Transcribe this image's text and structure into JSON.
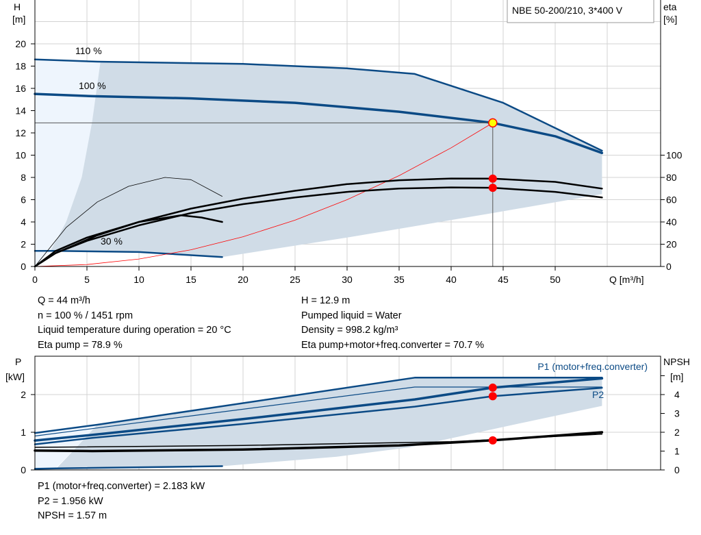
{
  "chart_data": [
    {
      "type": "line",
      "title": "NBE 50-200/210, 3*400 V",
      "xlabel": "Q [m³/h]",
      "ylabel": "H [m]",
      "ylabel_lines": [
        "H",
        "[m]"
      ],
      "y2label_lines": [
        "eta",
        "[%]"
      ],
      "xlim": [
        0,
        60
      ],
      "ylim": [
        0,
        24
      ],
      "y2lim": [
        0,
        100
      ],
      "xticks": [
        "0",
        "5",
        "10",
        "15",
        "20",
        "25",
        "30",
        "35",
        "40",
        "45",
        "50"
      ],
      "yticks": [
        "0",
        "2",
        "4",
        "6",
        "8",
        "10",
        "12",
        "14",
        "16",
        "18",
        "20"
      ],
      "y2ticks": [
        "0",
        "20",
        "40",
        "60",
        "80",
        "100"
      ],
      "grid": true,
      "curve_labels": [
        "110 %",
        "100 %",
        "30 %"
      ],
      "series": [
        {
          "axis": "H",
          "style": "max",
          "points": [
            [
              0,
              18.6
            ],
            [
              6,
              18.4
            ],
            [
              20,
              18.2
            ],
            [
              30,
              17.8
            ],
            [
              36.5,
              17.3
            ],
            [
              45,
              14.7
            ],
            [
              54.5,
              10.4
            ]
          ]
        },
        {
          "axis": "H",
          "style": "main",
          "points": [
            [
              0,
              15.5
            ],
            [
              5.5,
              15.3
            ],
            [
              15,
              15.1
            ],
            [
              25,
              14.7
            ],
            [
              35,
              13.9
            ],
            [
              44,
              12.9
            ],
            [
              50,
              11.7
            ],
            [
              54.5,
              10.2
            ]
          ]
        },
        {
          "axis": "H",
          "style": "min",
          "points": [
            [
              0,
              1.4
            ],
            [
              2,
              1.4
            ],
            [
              10,
              1.3
            ],
            [
              18,
              0.85
            ]
          ]
        },
        {
          "axis": "H",
          "style": "system",
          "points": [
            [
              0,
              0
            ],
            [
              5,
              0.17
            ],
            [
              10,
              0.67
            ],
            [
              15,
              1.5
            ],
            [
              20,
              2.67
            ],
            [
              25,
              4.16
            ],
            [
              30,
              6.0
            ],
            [
              35,
              8.16
            ],
            [
              40,
              10.66
            ],
            [
              44,
              12.9
            ]
          ]
        },
        {
          "axis": "eta",
          "style": "eta",
          "points": [
            [
              0,
              0
            ],
            [
              2,
              14
            ],
            [
              5,
              26
            ],
            [
              10,
              40
            ],
            [
              15,
              52
            ],
            [
              20,
              61
            ],
            [
              25,
              68
            ],
            [
              30,
              74
            ],
            [
              35,
              77.5
            ],
            [
              40,
              79
            ],
            [
              44,
              78.9
            ],
            [
              50,
              76
            ],
            [
              54.5,
              70
            ]
          ]
        },
        {
          "axis": "eta",
          "style": "eta",
          "points": [
            [
              0,
              0
            ],
            [
              2,
              12
            ],
            [
              5,
              23
            ],
            [
              10,
              37
            ],
            [
              15,
              48
            ],
            [
              20,
              56
            ],
            [
              25,
              62
            ],
            [
              30,
              67
            ],
            [
              35,
              70
            ],
            [
              40,
              71
            ],
            [
              44,
              70.7
            ],
            [
              50,
              67
            ],
            [
              54.5,
              62
            ]
          ]
        },
        {
          "axis": "eta",
          "style": "eta-thin",
          "points": [
            [
              0,
              0
            ],
            [
              3,
              35
            ],
            [
              6,
              58
            ],
            [
              9,
              72
            ],
            [
              12.5,
              80
            ],
            [
              15,
              78
            ],
            [
              18,
              63
            ]
          ]
        },
        {
          "axis": "eta",
          "style": "eta",
          "points": [
            [
              2,
              12
            ],
            [
              6,
              28
            ],
            [
              10,
              40
            ],
            [
              14,
              46
            ],
            [
              16,
              44
            ],
            [
              18,
              40
            ]
          ]
        }
      ],
      "operating_point": {
        "Q": 44,
        "H": 12.9,
        "eta_pump": 78.9,
        "eta_total": 70.7
      }
    },
    {
      "type": "line",
      "ylabel_lines": [
        "P",
        "[kW]"
      ],
      "y2label_lines": [
        "NPSH",
        "[m]"
      ],
      "xlim": [
        0,
        60
      ],
      "ylim": [
        0,
        3
      ],
      "y2lim": [
        0,
        6
      ],
      "yticks": [
        "0",
        "1",
        "2"
      ],
      "y2ticks": [
        "0",
        "1",
        "2",
        "3",
        "4"
      ],
      "grid": true,
      "series_labels": [
        "P1 (motor+freq.converter)",
        "P2"
      ],
      "series": [
        {
          "axis": "P",
          "style": "max",
          "points": [
            [
              0,
              0.98
            ],
            [
              6,
              1.2
            ],
            [
              36.5,
              2.45
            ],
            [
              54.5,
              2.45
            ]
          ]
        },
        {
          "axis": "P",
          "style": "thin",
          "points": [
            [
              0,
              0.9
            ],
            [
              36.5,
              2.2
            ],
            [
              54.5,
              2.2
            ]
          ]
        },
        {
          "axis": "P",
          "style": "main",
          "points": [
            [
              0,
              0.78
            ],
            [
              5.5,
              0.93
            ],
            [
              20,
              1.35
            ],
            [
              36.5,
              1.87
            ],
            [
              44,
              2.183
            ],
            [
              54.5,
              2.43
            ]
          ]
        },
        {
          "axis": "P",
          "style": "p2",
          "points": [
            [
              0,
              0.68
            ],
            [
              5.5,
              0.85
            ],
            [
              20,
              1.22
            ],
            [
              36.5,
              1.68
            ],
            [
              44,
              1.956
            ],
            [
              54.5,
              2.18
            ]
          ]
        },
        {
          "axis": "NPSH",
          "style": "npsh-thin",
          "points": [
            [
              0,
              1.2
            ],
            [
              20,
              1.3
            ],
            [
              40,
              1.5
            ],
            [
              54.5,
              1.9
            ]
          ]
        },
        {
          "axis": "NPSH",
          "style": "npsh",
          "points": [
            [
              0,
              1.03
            ],
            [
              5.5,
              1.0
            ],
            [
              20,
              1.08
            ],
            [
              35,
              1.3
            ],
            [
              44,
              1.57
            ],
            [
              54.5,
              2.0
            ]
          ]
        },
        {
          "axis": "P",
          "style": "min",
          "points": [
            [
              0,
              0.03
            ],
            [
              2,
              0.04
            ],
            [
              18,
              0.1
            ]
          ]
        }
      ],
      "operating_point": {
        "Q": 44,
        "P1": 2.183,
        "P2": 1.956,
        "NPSH": 1.57
      }
    }
  ],
  "info_top_left": [
    "Q = 44 m³/h",
    "n = 100 % / 1451 rpm",
    "Liquid temperature during operation = 20 °C",
    "Eta pump = 78.9 %"
  ],
  "info_top_right": [
    "H = 12.9 m",
    "Pumped liquid = Water",
    "Density = 998.2 kg/m³",
    "Eta pump+motor+freq.converter = 70.7 %"
  ],
  "info_bottom": [
    "P1 (motor+freq.converter) = 2.183 kW",
    "P2 = 1.956 kW",
    "NPSH = 1.57 m"
  ],
  "colors": {
    "curve_blue": "#0b4a85",
    "area": "#d0dce7",
    "area_light": "#eef5fd",
    "point_red": "#ff0000",
    "point_yellow": "#ffff00",
    "system_curve": "#ff0000",
    "grid": "#d3d3d3"
  }
}
